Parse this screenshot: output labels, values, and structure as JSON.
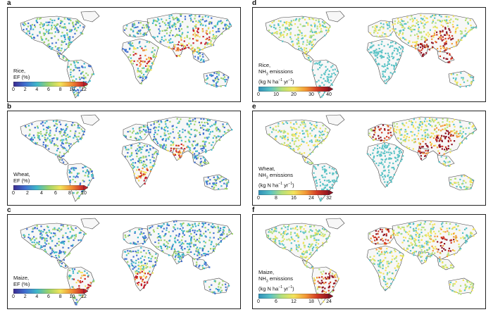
{
  "panels": [
    {
      "id": "a",
      "crop": "Rice",
      "ylabel_parts": [
        "Rice,",
        "EF (%)"
      ],
      "ticks": [
        "0",
        "2",
        "4",
        "6",
        "8",
        "10",
        "12"
      ],
      "scale": "ef",
      "hot": [
        "asia-south",
        "asia-east",
        "nafrica"
      ]
    },
    {
      "id": "b",
      "crop": "Wheat",
      "ylabel_parts": [
        "Wheat,",
        "EF (%)"
      ],
      "ticks": [
        "0",
        "2",
        "4",
        "6",
        "8",
        "10"
      ],
      "scale": "ef",
      "hot": [
        "safrica",
        "india"
      ]
    },
    {
      "id": "c",
      "crop": "Maize",
      "ylabel_parts": [
        "Maize,",
        "EF (%)"
      ],
      "ticks": [
        "0",
        "2",
        "4",
        "6",
        "8",
        "10",
        "12"
      ],
      "scale": "ef",
      "hot": [
        "brazil",
        "safrica"
      ]
    },
    {
      "id": "d",
      "crop": "Rice",
      "ylabel_parts": [
        "Rice,",
        "NH3 emissions",
        "(kg N ha-1 yr-1)"
      ],
      "ticks": [
        "0",
        "10",
        "20",
        "30",
        "40"
      ],
      "scale": "nh3",
      "hot": [
        "asia-east",
        "asia-south",
        "seasia"
      ]
    },
    {
      "id": "e",
      "crop": "Wheat",
      "ylabel_parts": [
        "Wheat,",
        "NH3 emissions",
        "(kg N ha-1 yr-1)"
      ],
      "ticks": [
        "0",
        "8",
        "16",
        "24",
        "32"
      ],
      "scale": "nh3",
      "hot": [
        "asia-east",
        "india",
        "europe"
      ]
    },
    {
      "id": "f",
      "crop": "Maize",
      "ylabel_parts": [
        "Maize,",
        "NH3 emissions",
        "(kg N ha-1 yr-1)"
      ],
      "ticks": [
        "0",
        "6",
        "12",
        "18",
        "24"
      ],
      "scale": "nh3",
      "hot": [
        "brazil",
        "asia-east",
        "europe"
      ]
    }
  ],
  "colors": {
    "ef": [
      "#3b2a8f",
      "#3f6fd0",
      "#3fb7c9",
      "#9bd36a",
      "#f2e35a",
      "#f08a32",
      "#c41e2a"
    ],
    "nh3": [
      "#2f8fb8",
      "#59c2c5",
      "#b5e07a",
      "#f3e35b",
      "#f39a37",
      "#d13a25",
      "#8e1020"
    ],
    "outline": "#444444"
  }
}
